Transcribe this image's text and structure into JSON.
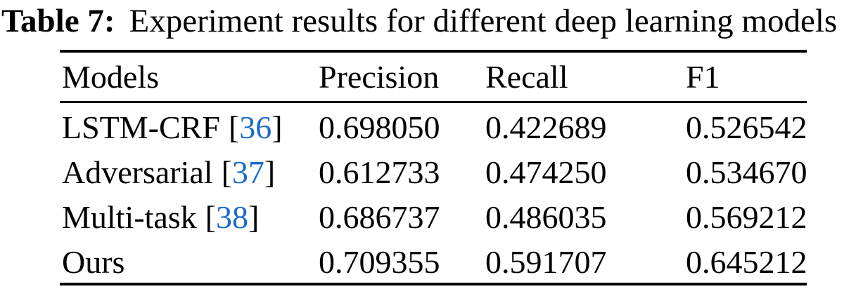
{
  "caption": {
    "label": "Table 7:",
    "text": "Experiment results for different deep learning models"
  },
  "table": {
    "columns": [
      "Models",
      "Precision",
      "Recall",
      "F1"
    ],
    "citation_brackets": [
      "[",
      "]"
    ],
    "rows": [
      {
        "model": "LSTM-CRF",
        "citation": "36",
        "precision": "0.698050",
        "recall": "0.422689",
        "f1": "0.526542"
      },
      {
        "model": "Adversarial",
        "citation": "37",
        "precision": "0.612733",
        "recall": "0.474250",
        "f1": "0.534670"
      },
      {
        "model": "Multi-task",
        "citation": "38",
        "precision": "0.686737",
        "recall": "0.486035",
        "f1": "0.569212"
      },
      {
        "model": "Ours",
        "citation": null,
        "precision": "0.709355",
        "recall": "0.591707",
        "f1": "0.645212"
      }
    ]
  },
  "colors": {
    "text": "#000000",
    "rule": "#000000",
    "citation_blue": "#1b6ac9"
  }
}
